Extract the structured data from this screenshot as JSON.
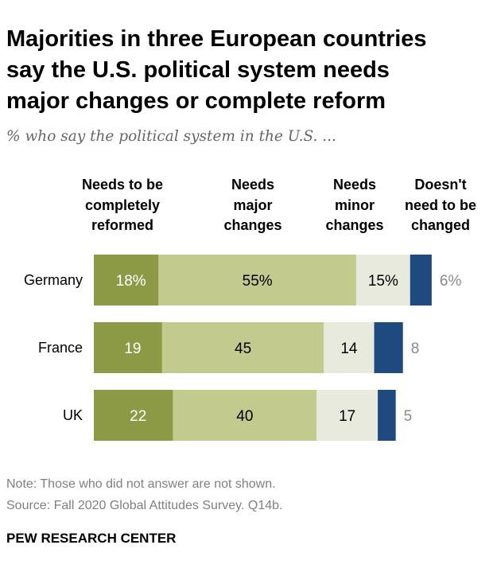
{
  "title_lines": [
    "Majorities in three European countries",
    "say the U.S. political system needs",
    "major changes or complete reform"
  ],
  "subtitle": "% who say the political system in the U.S. ...",
  "headers": [
    [
      "Needs to be",
      "completely",
      "reformed"
    ],
    [
      "Needs",
      "major",
      "changes"
    ],
    [
      "Needs",
      "minor",
      "changes"
    ],
    [
      "Doesn't",
      "need to be",
      "changed"
    ]
  ],
  "colors": {
    "reformed": "#8c9a46",
    "major": "#c3ca8e",
    "minor": "#e8eadd",
    "not_changed": "#1e4a80",
    "label_light": "#ffffff",
    "label_dark": "#000000",
    "outside_label": "#8a8a8a"
  },
  "chart_data": {
    "type": "bar",
    "orientation": "horizontal",
    "stacked": true,
    "categories": [
      "Germany",
      "France",
      "UK"
    ],
    "series": [
      {
        "name": "Needs to be completely reformed",
        "values": [
          18,
          19,
          22
        ],
        "labels": [
          "18%",
          "19",
          "22"
        ]
      },
      {
        "name": "Needs major changes",
        "values": [
          55,
          45,
          40
        ],
        "labels": [
          "55%",
          "45",
          "40"
        ]
      },
      {
        "name": "Needs minor changes",
        "values": [
          15,
          14,
          17
        ],
        "labels": [
          "15%",
          "14",
          "17"
        ]
      },
      {
        "name": "Doesn't need to be changed",
        "values": [
          6,
          8,
          5
        ],
        "labels": [
          "6%",
          "8",
          "5"
        ]
      }
    ],
    "xlim": [
      0,
      100
    ]
  },
  "note": "Note: Those who did not answer are not shown.",
  "source": "Source: Fall 2020 Global Attitudes Survey. Q14b.",
  "brand": "PEW RESEARCH CENTER"
}
